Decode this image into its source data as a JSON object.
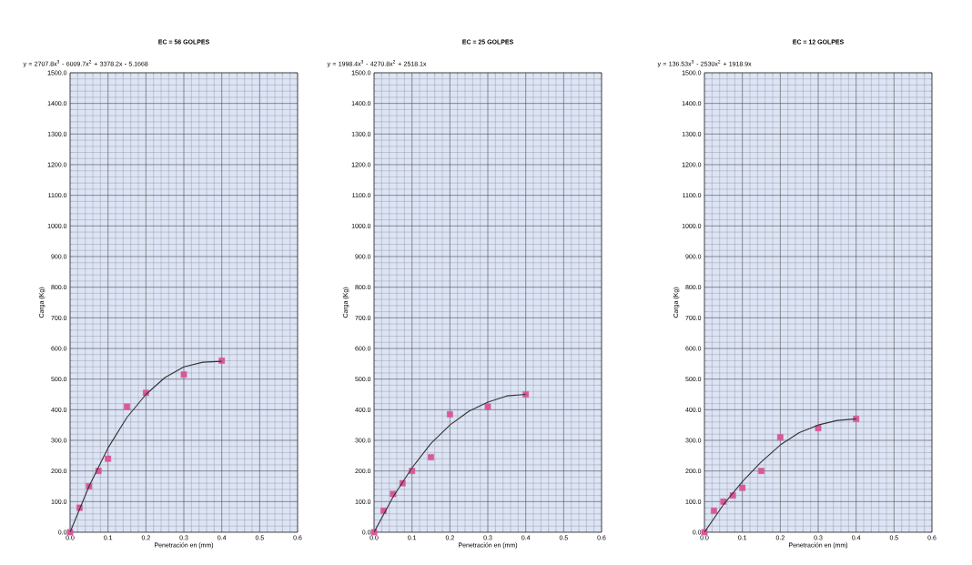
{
  "chart_data": [
    {
      "type": "scatter",
      "title": "EC = 56 GOLPES",
      "xlabel": "Penetración en (mm)",
      "ylabel": "Carga (Kg)",
      "annotations": [
        "y = 2707.8x$^{3}$ - 6009.7x$^{2}$ + 3378.2x - 5.1668"
      ],
      "xlim": [
        0,
        0.6
      ],
      "ylim": [
        0,
        1500
      ],
      "grid": true,
      "xticks": [
        {
          "value": 0,
          "label": "0.0"
        },
        {
          "value": 0.1,
          "label": "0.1"
        },
        {
          "value": 0.2,
          "label": "0.2"
        },
        {
          "value": 0.3,
          "label": "0.3"
        },
        {
          "value": 0.4,
          "label": "0.4"
        },
        {
          "value": 0.5,
          "label": "0.5"
        },
        {
          "value": 0.6,
          "label": "0.6"
        }
      ],
      "yticks": [
        {
          "value": 0,
          "label": "0.0"
        },
        {
          "value": 100,
          "label": "100.0"
        },
        {
          "value": 200,
          "label": "200.0"
        },
        {
          "value": 300,
          "label": "300.0"
        },
        {
          "value": 400,
          "label": "400.0"
        },
        {
          "value": 500,
          "label": "500.0"
        },
        {
          "value": 600,
          "label": "600.0"
        },
        {
          "value": 700,
          "label": "700.0"
        },
        {
          "value": 800,
          "label": "800.0"
        },
        {
          "value": 900,
          "label": "900.0"
        },
        {
          "value": 1000,
          "label": "1000.0"
        },
        {
          "value": 1100,
          "label": "1100.0"
        },
        {
          "value": 1200,
          "label": "1200.0"
        },
        {
          "value": 1300,
          "label": "1300.0"
        },
        {
          "value": 1400,
          "label": "1400.0"
        },
        {
          "value": 1500,
          "label": "1500.0"
        }
      ],
      "series": [
        {
          "type": "scatter",
          "marker": "square",
          "color": "#d9589a",
          "x": [
            0,
            0.025,
            0.05,
            0.075,
            0.1,
            0.15,
            0.2,
            0.3,
            0.4
          ],
          "values": [
            0,
            80,
            150,
            200,
            240,
            410,
            455,
            515,
            560
          ]
        },
        {
          "type": "line",
          "marker": "none",
          "color": "#333333",
          "x": [
            0,
            0.05,
            0.1,
            0.15,
            0.2,
            0.25,
            0.3,
            0.35,
            0.4
          ],
          "values": [
            0,
            150,
            275,
            375,
            450,
            505,
            540,
            555,
            558
          ]
        }
      ]
    },
    {
      "type": "scatter",
      "title": "EC = 25 GOLPES",
      "xlabel": "Penetración en (mm)",
      "ylabel": "Carga (Kg)",
      "annotations": [
        "y = 1998.4x$^{3}$ - 4270.8x$^{2}$ + 2518.1x"
      ],
      "xlim": [
        0,
        0.6
      ],
      "ylim": [
        0,
        1500
      ],
      "grid": true,
      "xticks": [
        {
          "value": 0,
          "label": "0.0"
        },
        {
          "value": 0.1,
          "label": "0.1"
        },
        {
          "value": 0.2,
          "label": "0.2"
        },
        {
          "value": 0.3,
          "label": "0.3"
        },
        {
          "value": 0.4,
          "label": "0.4"
        },
        {
          "value": 0.5,
          "label": "0.5"
        },
        {
          "value": 0.6,
          "label": "0.6"
        }
      ],
      "yticks": [
        {
          "value": 0,
          "label": "0.0"
        },
        {
          "value": 100,
          "label": "100.0"
        },
        {
          "value": 200,
          "label": "200.0"
        },
        {
          "value": 300,
          "label": "300.0"
        },
        {
          "value": 400,
          "label": "400.0"
        },
        {
          "value": 500,
          "label": "500.0"
        },
        {
          "value": 600,
          "label": "600.0"
        },
        {
          "value": 700,
          "label": "700.0"
        },
        {
          "value": 800,
          "label": "800.0"
        },
        {
          "value": 900,
          "label": "900.0"
        },
        {
          "value": 1000,
          "label": "1000.0"
        },
        {
          "value": 1100,
          "label": "1100.0"
        },
        {
          "value": 1200,
          "label": "1200.0"
        },
        {
          "value": 1300,
          "label": "1300.0"
        },
        {
          "value": 1400,
          "label": "1400.0"
        },
        {
          "value": 1500,
          "label": "1500.0"
        }
      ],
      "series": [
        {
          "type": "scatter",
          "marker": "square",
          "color": "#d9589a",
          "x": [
            0,
            0.025,
            0.05,
            0.075,
            0.1,
            0.15,
            0.2,
            0.3,
            0.4
          ],
          "values": [
            0,
            70,
            125,
            160,
            200,
            245,
            385,
            410,
            450
          ]
        },
        {
          "type": "line",
          "marker": "none",
          "color": "#333333",
          "x": [
            0,
            0.05,
            0.1,
            0.15,
            0.2,
            0.25,
            0.3,
            0.35,
            0.4
          ],
          "values": [
            0,
            115,
            210,
            290,
            350,
            395,
            425,
            445,
            450
          ]
        }
      ]
    },
    {
      "type": "scatter",
      "title": "EC = 12 GOLPES",
      "xlabel": "Penetración en (mm)",
      "ylabel": "Carga (Kg)",
      "annotations": [
        "y = 136.53x$^{3}$ - 2530x$^{2}$ + 1918.9x"
      ],
      "xlim": [
        0,
        0.6
      ],
      "ylim": [
        0,
        1500
      ],
      "grid": true,
      "xticks": [
        {
          "value": 0,
          "label": "0.0"
        },
        {
          "value": 0.1,
          "label": "0.1"
        },
        {
          "value": 0.2,
          "label": "0.2"
        },
        {
          "value": 0.3,
          "label": "0.3"
        },
        {
          "value": 0.4,
          "label": "0.4"
        },
        {
          "value": 0.5,
          "label": "0.5"
        },
        {
          "value": 0.6,
          "label": "0.6"
        }
      ],
      "yticks": [
        {
          "value": 0,
          "label": "0.0"
        },
        {
          "value": 100,
          "label": "100.0"
        },
        {
          "value": 200,
          "label": "200.0"
        },
        {
          "value": 300,
          "label": "300.0"
        },
        {
          "value": 400,
          "label": "400.0"
        },
        {
          "value": 500,
          "label": "500.0"
        },
        {
          "value": 600,
          "label": "600.0"
        },
        {
          "value": 700,
          "label": "700.0"
        },
        {
          "value": 800,
          "label": "800.0"
        },
        {
          "value": 900,
          "label": "900.0"
        },
        {
          "value": 1000,
          "label": "1000.0"
        },
        {
          "value": 1100,
          "label": "1100.0"
        },
        {
          "value": 1200,
          "label": "1200.0"
        },
        {
          "value": 1300,
          "label": "1300.0"
        },
        {
          "value": 1400,
          "label": "1400.0"
        },
        {
          "value": 1500,
          "label": "1500.0"
        }
      ],
      "series": [
        {
          "type": "scatter",
          "marker": "square",
          "color": "#d9589a",
          "x": [
            0,
            0.025,
            0.05,
            0.075,
            0.1,
            0.15,
            0.2,
            0.3,
            0.4
          ],
          "values": [
            0,
            70,
            100,
            120,
            145,
            200,
            310,
            340,
            370
          ]
        },
        {
          "type": "line",
          "marker": "none",
          "color": "#333333",
          "x": [
            0,
            0.05,
            0.1,
            0.15,
            0.2,
            0.25,
            0.3,
            0.35,
            0.4
          ],
          "values": [
            0,
            90,
            165,
            230,
            285,
            325,
            350,
            365,
            370
          ]
        }
      ]
    }
  ]
}
